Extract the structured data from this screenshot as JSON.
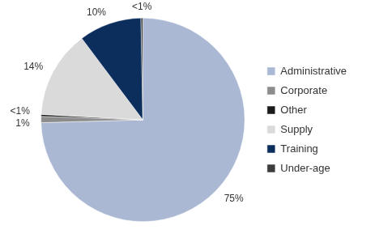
{
  "chart_data": {
    "type": "pie",
    "categories": [
      "Administrative",
      "Corporate",
      "Other",
      "Supply",
      "Training",
      "Under-age"
    ],
    "values": [
      75,
      1,
      0.3,
      14,
      10,
      0.3
    ],
    "value_labels": [
      "75%",
      "1%",
      "<1%",
      "14%",
      "10%",
      "<1%"
    ],
    "colors": [
      "#abb8d4",
      "#8c8c8c",
      "#1a1a1a",
      "#dadada",
      "#0b2e5c",
      "#3c3c3c"
    ],
    "legend": "right",
    "data_labels": true
  }
}
